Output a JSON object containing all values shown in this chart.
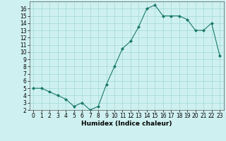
{
  "x": [
    0,
    1,
    2,
    3,
    4,
    5,
    6,
    7,
    8,
    9,
    10,
    11,
    12,
    13,
    14,
    15,
    16,
    17,
    18,
    19,
    20,
    21,
    22,
    23
  ],
  "y": [
    5,
    5,
    4.5,
    4,
    3.5,
    2.5,
    3,
    2,
    2.5,
    5.5,
    8,
    10.5,
    11.5,
    13.5,
    16,
    16.5,
    15,
    15,
    15,
    14.5,
    13,
    13,
    14,
    9.5
  ],
  "line_color": "#1a7a6a",
  "marker_color": "#1a7a6a",
  "bg_color": "#cff0f0",
  "grid_color": "#a0d8d8",
  "xlabel": "Humidex (Indice chaleur)",
  "ylim": [
    2,
    17
  ],
  "xlim": [
    -0.5,
    23.5
  ],
  "yticks": [
    2,
    3,
    4,
    5,
    6,
    7,
    8,
    9,
    10,
    11,
    12,
    13,
    14,
    15,
    16
  ],
  "xticks": [
    0,
    1,
    2,
    3,
    4,
    5,
    6,
    7,
    8,
    9,
    10,
    11,
    12,
    13,
    14,
    15,
    16,
    17,
    18,
    19,
    20,
    21,
    22,
    23
  ],
  "tick_fontsize": 5.5,
  "label_fontsize": 6.5
}
